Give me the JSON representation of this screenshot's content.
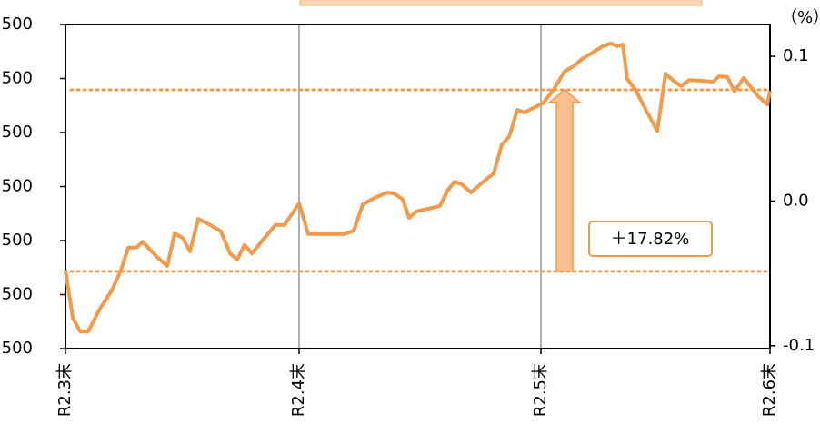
{
  "chart_data": {
    "type": "line",
    "x": [
      0,
      8,
      16,
      25,
      38,
      51,
      61,
      69,
      78,
      85,
      93,
      103,
      112,
      120,
      129,
      137,
      146,
      158,
      171,
      181,
      189,
      197,
      205,
      218,
      231,
      241,
      257,
      267,
      278,
      293,
      307,
      317,
      327,
      340,
      354,
      362,
      371,
      378,
      386,
      399,
      412,
      420,
      428,
      436,
      446,
      459,
      471,
      480,
      488,
      497,
      505,
      513,
      525,
      536,
      549,
      559,
      568,
      580,
      591,
      600,
      607,
      613,
      618,
      627,
      639,
      651,
      660,
      668,
      677,
      686,
      699,
      712,
      719,
      728,
      736,
      746,
      762,
      772,
      775
    ],
    "series": [
      {
        "color": "#f39a4a",
        "values": [
          1.45,
          0.57,
          0.32,
          0.32,
          0.74,
          1.08,
          1.45,
          1.87,
          1.87,
          1.98,
          1.83,
          1.66,
          1.53,
          2.13,
          2.05,
          1.8,
          2.4,
          2.3,
          2.17,
          1.76,
          1.65,
          1.92,
          1.76,
          2.03,
          2.29,
          2.29,
          2.69,
          2.12,
          2.12,
          2.12,
          2.12,
          2.18,
          2.67,
          2.79,
          2.89,
          2.87,
          2.76,
          2.42,
          2.54,
          2.59,
          2.64,
          2.92,
          3.09,
          3.04,
          2.89,
          3.08,
          3.24,
          3.78,
          3.92,
          4.42,
          4.37,
          4.44,
          4.54,
          4.77,
          5.13,
          5.23,
          5.36,
          5.48,
          5.6,
          5.65,
          5.6,
          5.63,
          4.99,
          4.79,
          4.4,
          4.03,
          5.09,
          4.97,
          4.86,
          4.97,
          4.96,
          4.94,
          5.04,
          5.03,
          4.76,
          5.01,
          4.67,
          4.52,
          4.77
        ]
      }
    ],
    "xlim": [
      0,
      775
    ],
    "xticks": [
      {
        "value": 0,
        "label": "R2.3末"
      },
      {
        "value": 257,
        "label": "R2.4末"
      },
      {
        "value": 523,
        "label": "R2.5末"
      },
      {
        "value": 775,
        "label": "R2.6末"
      }
    ],
    "ylim": [
      0,
      6
    ],
    "yticks": [
      {
        "value": 0,
        "label": "500"
      },
      {
        "value": 1,
        "label": "500"
      },
      {
        "value": 2,
        "label": "500"
      },
      {
        "value": 3,
        "label": "500"
      },
      {
        "value": 4,
        "label": "500"
      },
      {
        "value": 5,
        "label": "500"
      },
      {
        "value": 6,
        "label": "500"
      }
    ],
    "y2label": "（%）",
    "y2lim": [
      -0.102,
      0.122
    ],
    "y2ticks": [
      -0.1,
      {
        "value": 0,
        "label": "0.0"
      },
      0.1
    ],
    "reference_lines": [
      4.79,
      1.43
    ],
    "annotation": "＋17.82%",
    "grid": true
  }
}
